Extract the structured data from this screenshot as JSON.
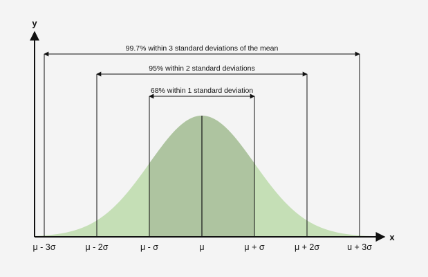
{
  "axes": {
    "y_label": "y",
    "x_label": "x"
  },
  "ticks": [
    "μ - 3σ",
    "μ - 2σ",
    "μ - σ",
    "μ",
    "μ + σ",
    "μ + 2σ",
    "u + 3σ"
  ],
  "ranges": {
    "three_sigma": "99.7% within 3 standard deviations of the mean",
    "two_sigma": "95% within 2 standard deviations",
    "one_sigma": "68% within 1 standard deviation"
  },
  "colors": {
    "curve_fill": "#c5dfb6",
    "inner_fill": "#aec4a0",
    "line": "#111111",
    "background": "#f4f4f4"
  }
}
